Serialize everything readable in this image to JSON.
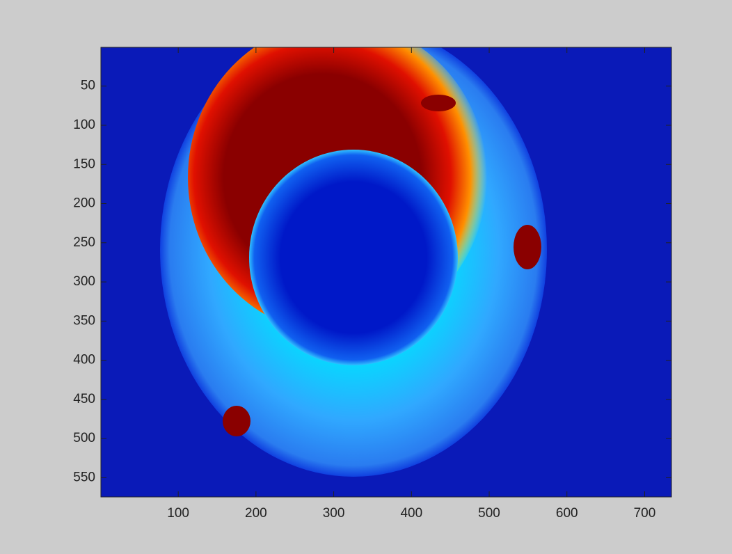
{
  "chart_data": {
    "type": "image",
    "xlim": [
      0.5,
      734.5
    ],
    "ylim": [
      0.5,
      574.5
    ],
    "y_reversed": true,
    "xticks": [
      100,
      200,
      300,
      400,
      500,
      600,
      700
    ],
    "yticks": [
      50,
      100,
      150,
      200,
      250,
      300,
      350,
      400,
      450,
      500,
      550
    ],
    "grid": false
  }
}
